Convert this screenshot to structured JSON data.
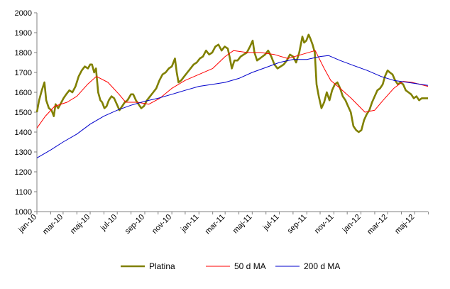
{
  "chart_data": {
    "type": "line",
    "title": "",
    "xlabel": "",
    "ylabel": "",
    "ylim": [
      1000,
      2000
    ],
    "yticks": [
      1000,
      1100,
      1200,
      1300,
      1400,
      1500,
      1600,
      1700,
      1800,
      1900,
      2000
    ],
    "xlim": [
      "2010-01-01",
      "2012-05-31"
    ],
    "xtick_labels": [
      "jan-10",
      "mar-10",
      "maj-10",
      "jul-10",
      "sep-10",
      "nov-10",
      "jan-11",
      "mar-11",
      "maj-11",
      "jul-11",
      "sep-11",
      "nov-11",
      "jan-12",
      "mar-12",
      "maj-12"
    ],
    "grid": false,
    "legend_position": "bottom",
    "series": [
      {
        "name": "Platina",
        "color": "#808000",
        "points": [
          [
            "2010-01-01",
            1500
          ],
          [
            "2010-01-06",
            1560
          ],
          [
            "2010-01-12",
            1610
          ],
          [
            "2010-01-18",
            1650
          ],
          [
            "2010-01-22",
            1560
          ],
          [
            "2010-01-28",
            1520
          ],
          [
            "2010-02-03",
            1510
          ],
          [
            "2010-02-08",
            1480
          ],
          [
            "2010-02-12",
            1540
          ],
          [
            "2010-02-18",
            1520
          ],
          [
            "2010-02-24",
            1545
          ],
          [
            "2010-03-02",
            1570
          ],
          [
            "2010-03-08",
            1590
          ],
          [
            "2010-03-15",
            1610
          ],
          [
            "2010-03-22",
            1600
          ],
          [
            "2010-03-29",
            1630
          ],
          [
            "2010-04-05",
            1680
          ],
          [
            "2010-04-12",
            1710
          ],
          [
            "2010-04-19",
            1730
          ],
          [
            "2010-04-26",
            1720
          ],
          [
            "2010-05-01",
            1740
          ],
          [
            "2010-05-05",
            1740
          ],
          [
            "2010-05-10",
            1700
          ],
          [
            "2010-05-14",
            1720
          ],
          [
            "2010-05-19",
            1600
          ],
          [
            "2010-05-24",
            1560
          ],
          [
            "2010-05-28",
            1550
          ],
          [
            "2010-06-02",
            1520
          ],
          [
            "2010-06-07",
            1530
          ],
          [
            "2010-06-12",
            1560
          ],
          [
            "2010-06-18",
            1580
          ],
          [
            "2010-06-24",
            1570
          ],
          [
            "2010-06-30",
            1540
          ],
          [
            "2010-07-06",
            1510
          ],
          [
            "2010-07-12",
            1530
          ],
          [
            "2010-07-18",
            1550
          ],
          [
            "2010-07-24",
            1560
          ],
          [
            "2010-08-01",
            1590
          ],
          [
            "2010-08-06",
            1590
          ],
          [
            "2010-08-12",
            1560
          ],
          [
            "2010-08-18",
            1540
          ],
          [
            "2010-08-24",
            1520
          ],
          [
            "2010-08-30",
            1530
          ],
          [
            "2010-09-06",
            1560
          ],
          [
            "2010-09-13",
            1580
          ],
          [
            "2010-09-20",
            1600
          ],
          [
            "2010-09-27",
            1620
          ],
          [
            "2010-10-04",
            1660
          ],
          [
            "2010-10-11",
            1690
          ],
          [
            "2010-10-18",
            1700
          ],
          [
            "2010-10-25",
            1720
          ],
          [
            "2010-11-01",
            1730
          ],
          [
            "2010-11-08",
            1770
          ],
          [
            "2010-11-12",
            1700
          ],
          [
            "2010-11-16",
            1650
          ],
          [
            "2010-11-22",
            1660
          ],
          [
            "2010-11-29",
            1680
          ],
          [
            "2010-12-06",
            1700
          ],
          [
            "2010-12-13",
            1720
          ],
          [
            "2010-12-20",
            1740
          ],
          [
            "2010-12-27",
            1750
          ],
          [
            "2011-01-03",
            1770
          ],
          [
            "2011-01-10",
            1780
          ],
          [
            "2011-01-17",
            1810
          ],
          [
            "2011-01-24",
            1790
          ],
          [
            "2011-01-31",
            1800
          ],
          [
            "2011-02-07",
            1830
          ],
          [
            "2011-02-14",
            1840
          ],
          [
            "2011-02-21",
            1810
          ],
          [
            "2011-02-28",
            1830
          ],
          [
            "2011-03-07",
            1820
          ],
          [
            "2011-03-11",
            1780
          ],
          [
            "2011-03-16",
            1720
          ],
          [
            "2011-03-22",
            1760
          ],
          [
            "2011-03-29",
            1760
          ],
          [
            "2011-04-05",
            1780
          ],
          [
            "2011-04-12",
            1790
          ],
          [
            "2011-04-19",
            1800
          ],
          [
            "2011-04-26",
            1830
          ],
          [
            "2011-05-02",
            1860
          ],
          [
            "2011-05-06",
            1800
          ],
          [
            "2011-05-12",
            1760
          ],
          [
            "2011-05-18",
            1770
          ],
          [
            "2011-05-24",
            1780
          ],
          [
            "2011-05-30",
            1790
          ],
          [
            "2011-06-06",
            1810
          ],
          [
            "2011-06-13",
            1780
          ],
          [
            "2011-06-20",
            1740
          ],
          [
            "2011-06-27",
            1720
          ],
          [
            "2011-07-04",
            1730
          ],
          [
            "2011-07-11",
            1740
          ],
          [
            "2011-07-18",
            1760
          ],
          [
            "2011-07-25",
            1790
          ],
          [
            "2011-08-01",
            1780
          ],
          [
            "2011-08-08",
            1750
          ],
          [
            "2011-08-15",
            1800
          ],
          [
            "2011-08-22",
            1880
          ],
          [
            "2011-08-26",
            1850
          ],
          [
            "2011-08-31",
            1860
          ],
          [
            "2011-09-05",
            1890
          ],
          [
            "2011-09-09",
            1870
          ],
          [
            "2011-09-14",
            1840
          ],
          [
            "2011-09-19",
            1800
          ],
          [
            "2011-09-23",
            1640
          ],
          [
            "2011-09-28",
            1580
          ],
          [
            "2011-10-04",
            1520
          ],
          [
            "2011-10-10",
            1550
          ],
          [
            "2011-10-16",
            1600
          ],
          [
            "2011-10-22",
            1560
          ],
          [
            "2011-10-28",
            1610
          ],
          [
            "2011-11-03",
            1640
          ],
          [
            "2011-11-09",
            1650
          ],
          [
            "2011-11-15",
            1620
          ],
          [
            "2011-11-21",
            1580
          ],
          [
            "2011-11-27",
            1560
          ],
          [
            "2011-12-03",
            1530
          ],
          [
            "2011-12-09",
            1500
          ],
          [
            "2011-12-15",
            1430
          ],
          [
            "2011-12-21",
            1410
          ],
          [
            "2011-12-27",
            1400
          ],
          [
            "2012-01-02",
            1410
          ],
          [
            "2012-01-08",
            1460
          ],
          [
            "2012-01-14",
            1490
          ],
          [
            "2012-01-20",
            1510
          ],
          [
            "2012-01-26",
            1550
          ],
          [
            "2012-02-01",
            1580
          ],
          [
            "2012-02-07",
            1610
          ],
          [
            "2012-02-13",
            1620
          ],
          [
            "2012-02-19",
            1640
          ],
          [
            "2012-02-24",
            1680
          ],
          [
            "2012-03-01",
            1710
          ],
          [
            "2012-03-06",
            1700
          ],
          [
            "2012-03-12",
            1690
          ],
          [
            "2012-03-18",
            1660
          ],
          [
            "2012-03-24",
            1640
          ],
          [
            "2012-03-30",
            1650
          ],
          [
            "2012-04-05",
            1640
          ],
          [
            "2012-04-11",
            1610
          ],
          [
            "2012-04-17",
            1600
          ],
          [
            "2012-04-23",
            1590
          ],
          [
            "2012-04-29",
            1570
          ],
          [
            "2012-05-05",
            1580
          ],
          [
            "2012-05-11",
            1560
          ],
          [
            "2012-05-17",
            1570
          ],
          [
            "2012-05-23",
            1570
          ],
          [
            "2012-05-31",
            1570
          ]
        ]
      },
      {
        "name": "50 d MA",
        "color": "#ff0000",
        "points": [
          [
            "2010-01-01",
            1420
          ],
          [
            "2010-01-20",
            1480
          ],
          [
            "2010-02-10",
            1530
          ],
          [
            "2010-03-10",
            1550
          ],
          [
            "2010-04-01",
            1580
          ],
          [
            "2010-04-25",
            1640
          ],
          [
            "2010-05-15",
            1680
          ],
          [
            "2010-06-10",
            1650
          ],
          [
            "2010-07-05",
            1590
          ],
          [
            "2010-07-20",
            1550
          ],
          [
            "2010-08-15",
            1550
          ],
          [
            "2010-09-10",
            1540
          ],
          [
            "2010-10-05",
            1570
          ],
          [
            "2010-11-01",
            1620
          ],
          [
            "2010-12-01",
            1660
          ],
          [
            "2011-01-01",
            1690
          ],
          [
            "2011-02-01",
            1720
          ],
          [
            "2011-03-01",
            1780
          ],
          [
            "2011-03-20",
            1810
          ],
          [
            "2011-04-20",
            1800
          ],
          [
            "2011-05-20",
            1800
          ],
          [
            "2011-06-20",
            1790
          ],
          [
            "2011-07-20",
            1770
          ],
          [
            "2011-08-20",
            1790
          ],
          [
            "2011-09-20",
            1810
          ],
          [
            "2011-10-10",
            1720
          ],
          [
            "2011-10-25",
            1660
          ],
          [
            "2011-11-15",
            1620
          ],
          [
            "2011-12-10",
            1570
          ],
          [
            "2012-01-10",
            1500
          ],
          [
            "2012-02-01",
            1510
          ],
          [
            "2012-02-20",
            1560
          ],
          [
            "2012-03-15",
            1620
          ],
          [
            "2012-04-05",
            1655
          ],
          [
            "2012-04-25",
            1650
          ],
          [
            "2012-05-31",
            1630
          ]
        ]
      },
      {
        "name": "200 d MA",
        "color": "#0000cc",
        "points": [
          [
            "2010-01-01",
            1270
          ],
          [
            "2010-02-01",
            1310
          ],
          [
            "2010-03-01",
            1350
          ],
          [
            "2010-04-01",
            1390
          ],
          [
            "2010-05-01",
            1440
          ],
          [
            "2010-06-01",
            1480
          ],
          [
            "2010-07-01",
            1510
          ],
          [
            "2010-08-01",
            1535
          ],
          [
            "2010-09-01",
            1555
          ],
          [
            "2010-10-01",
            1570
          ],
          [
            "2010-11-01",
            1590
          ],
          [
            "2010-12-01",
            1610
          ],
          [
            "2011-01-01",
            1630
          ],
          [
            "2011-02-01",
            1640
          ],
          [
            "2011-03-01",
            1650
          ],
          [
            "2011-04-01",
            1670
          ],
          [
            "2011-05-01",
            1700
          ],
          [
            "2011-06-01",
            1725
          ],
          [
            "2011-07-01",
            1750
          ],
          [
            "2011-08-01",
            1765
          ],
          [
            "2011-09-01",
            1765
          ],
          [
            "2011-10-01",
            1780
          ],
          [
            "2011-10-20",
            1785
          ],
          [
            "2011-11-15",
            1760
          ],
          [
            "2011-12-15",
            1735
          ],
          [
            "2012-01-15",
            1710
          ],
          [
            "2012-02-15",
            1680
          ],
          [
            "2012-03-15",
            1660
          ],
          [
            "2012-04-15",
            1650
          ],
          [
            "2012-05-31",
            1635
          ]
        ]
      }
    ]
  }
}
